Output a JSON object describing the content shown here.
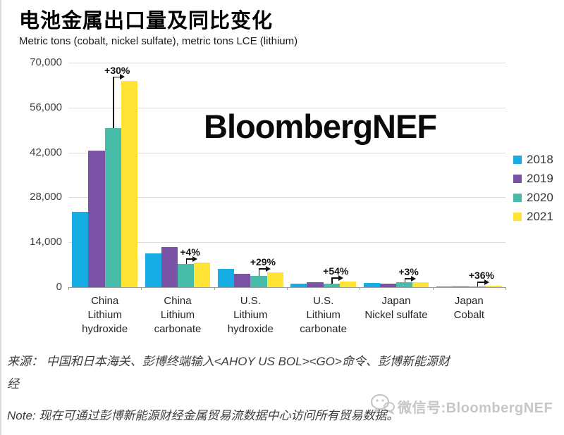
{
  "page": {
    "title": "电池金属出口量及同比变化",
    "subtitle": "Metric tons (cobalt, nickel sulfate), metric tons LCE (lithium)",
    "source_text": "来源：  中国和日本海关、彭博终端输入<AHOY US BOL><GO>命令、彭博新能源财\n经",
    "note_text": "Note: 现在可通过彭博新能源财经金属贸易流数据中心访问所有贸易数据。",
    "center_watermark": "BloombergNEF",
    "wechat_watermark": "微信号:BloombergNEF"
  },
  "chart_data": {
    "type": "bar",
    "title": "电池金属出口量及同比变化",
    "subtitle_units": "Metric tons (cobalt, nickel sulfate), metric tons LCE (lithium)",
    "categories": [
      "China\nLithium\nhydroxide",
      "China\nLithium\ncarbonate",
      "U.S.\nLithium\nhydroxide",
      "U.S.\nLithium\ncarbonate",
      "Japan\nNickel sulfate",
      "Japan\nCobalt"
    ],
    "series": [
      {
        "name": "2018",
        "color": "#17ADE4",
        "values": [
          23500,
          10500,
          5800,
          1000,
          1250,
          300
        ]
      },
      {
        "name": "2019",
        "color": "#7B53A6",
        "values": [
          42500,
          12400,
          4100,
          1500,
          1100,
          250
        ]
      },
      {
        "name": "2020",
        "color": "#46BCA9",
        "values": [
          49500,
          7300,
          3500,
          1100,
          1450,
          300
        ]
      },
      {
        "name": "2021",
        "color": "#FFE335",
        "values": [
          64400,
          7600,
          4500,
          1700,
          1500,
          410
        ]
      }
    ],
    "annotations": [
      {
        "group": 0,
        "from_series": "2020",
        "to_series": "2021",
        "label": "+30%"
      },
      {
        "group": 1,
        "from_series": "2020",
        "to_series": "2021",
        "label": "+4%"
      },
      {
        "group": 2,
        "from_series": "2020",
        "to_series": "2021",
        "label": "+29%"
      },
      {
        "group": 3,
        "from_series": "2020",
        "to_series": "2021",
        "label": "+54%"
      },
      {
        "group": 4,
        "from_series": "2020",
        "to_series": "2021",
        "label": "+3%"
      },
      {
        "group": 5,
        "from_series": "2020",
        "to_series": "2021",
        "label": "+36%"
      }
    ],
    "y_ticks": [
      {
        "label": "70,000",
        "value": 70000
      },
      {
        "label": "56,000",
        "value": 56000
      },
      {
        "label": "42,000",
        "value": 42000
      },
      {
        "label": "28,000",
        "value": 28000
      },
      {
        "label": "14,000",
        "value": 14000
      },
      {
        "label": "0",
        "value": 0
      }
    ],
    "ylim": [
      0,
      70000
    ],
    "grid": true,
    "legend_position": "right"
  }
}
